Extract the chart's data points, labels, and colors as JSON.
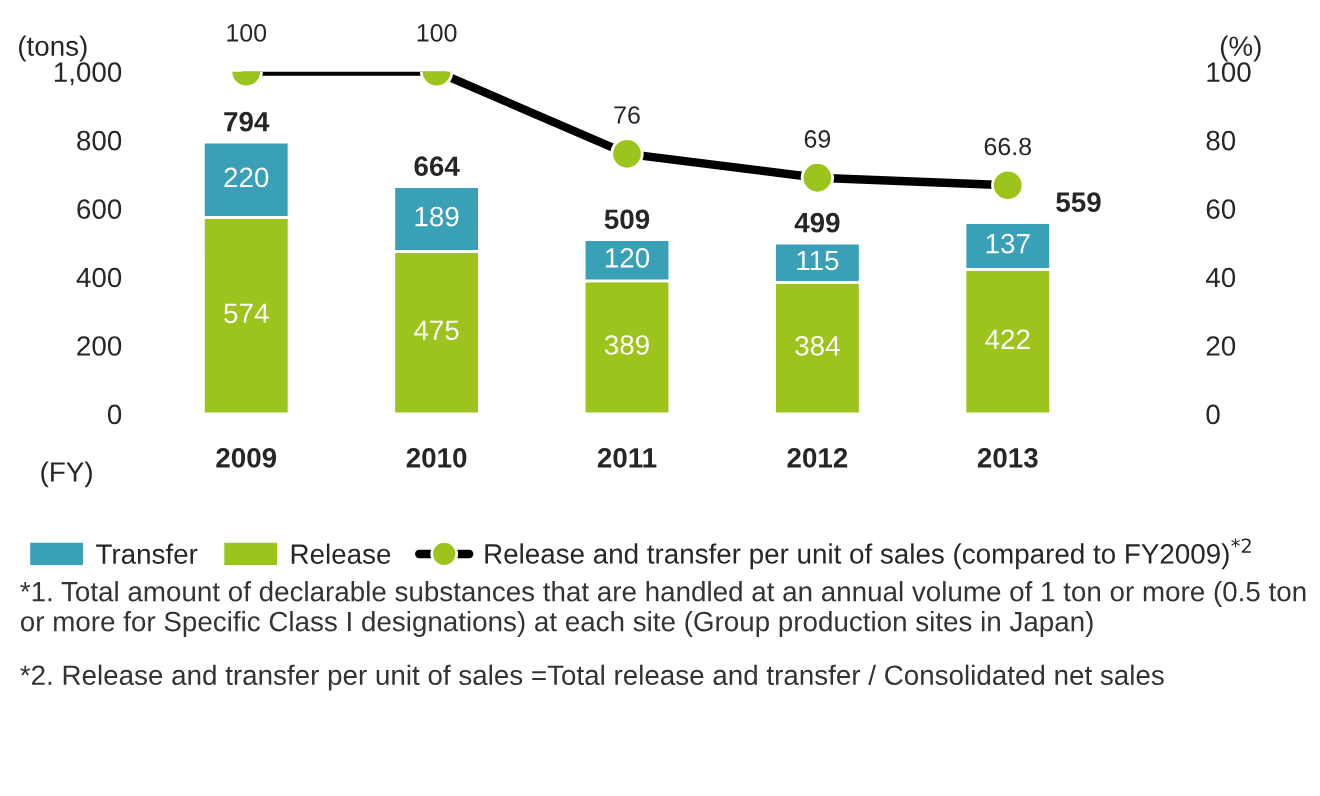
{
  "chart_data": {
    "type": "bar",
    "stacked": true,
    "ylabel": "(tons)",
    "y2label": "(%)",
    "xlabel": "(FY)",
    "categories": [
      "2009",
      "2010",
      "2011",
      "2012",
      "2013"
    ],
    "series": [
      {
        "name": "Release",
        "color": "#9dc41c",
        "values": [
          574,
          475,
          389,
          384,
          422
        ]
      },
      {
        "name": "Transfer",
        "color": "#3aa0b8",
        "values": [
          220,
          189,
          120,
          115,
          137
        ]
      },
      {
        "name": "Release and transfer per unit of sales (compared to FY2009)$^{*2}$",
        "type": "line",
        "axis": "y2",
        "color": "#9dc41c",
        "marker": "circle",
        "values": [
          100,
          100,
          76,
          69,
          66.8
        ],
        "value_labels": [
          "100",
          "100",
          "76",
          "69",
          "66.8"
        ]
      }
    ],
    "data_labels": true,
    "totals": [
      "794",
      "664",
      "509",
      "499",
      "559"
    ],
    "ylim": [
      0,
      1000
    ],
    "yticks": [
      0,
      200,
      400,
      600,
      800,
      {
        "value": 1000,
        "label": "1,000"
      }
    ],
    "y2lim": [
      0,
      100
    ],
    "y2ticks": [
      0,
      20,
      40,
      60,
      80,
      100
    ],
    "grid": false,
    "legend": "bottom",
    "annotations": [
      "*1. Total amount of declarable substances that are handled at an annual volume of 1 ton or more (0.5 ton or more for Specific Class I designations) at each site (Group production sites in Japan)",
      "*2. Release and transfer per unit of sales =Total release and transfer / Consolidated net sales"
    ]
  }
}
